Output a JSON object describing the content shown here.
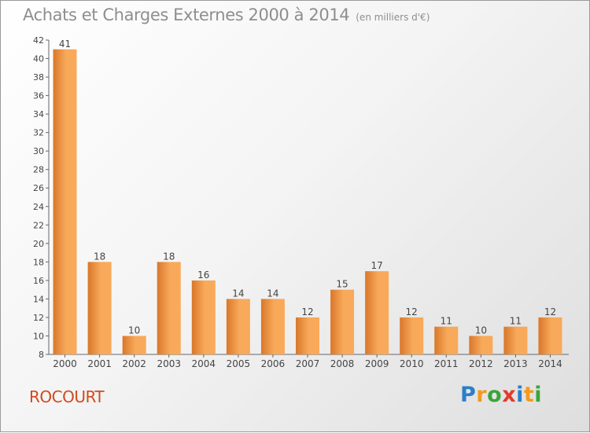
{
  "header": {
    "title": "Achats et Charges Externes 2000 à 2014",
    "unit": "(en milliers d'€)"
  },
  "place": "ROCOURT",
  "brand": {
    "letters": [
      "P",
      "r",
      "o",
      "x",
      "i",
      "t",
      "i"
    ],
    "colors": [
      "#2a7fc9",
      "#f29a1d",
      "#3aa43a",
      "#e23a2a",
      "#2a7fc9",
      "#f29a1d",
      "#3aa43a"
    ]
  },
  "colors": {
    "bar_light": "#f8a95a",
    "bar_dark": "#d9772a",
    "text": "#444444",
    "axis": "#666666"
  },
  "chart_data": {
    "type": "bar",
    "categories": [
      "2000",
      "2001",
      "2002",
      "2003",
      "2004",
      "2005",
      "2006",
      "2007",
      "2008",
      "2009",
      "2010",
      "2011",
      "2012",
      "2013",
      "2014"
    ],
    "values": [
      41,
      18,
      10,
      18,
      16,
      14,
      14,
      12,
      15,
      17,
      12,
      11,
      10,
      11,
      12
    ],
    "ylim": [
      8,
      42
    ],
    "yticks": [
      8,
      10,
      12,
      14,
      16,
      18,
      20,
      22,
      24,
      26,
      28,
      30,
      32,
      34,
      36,
      38,
      40,
      42
    ],
    "grid": false
  }
}
